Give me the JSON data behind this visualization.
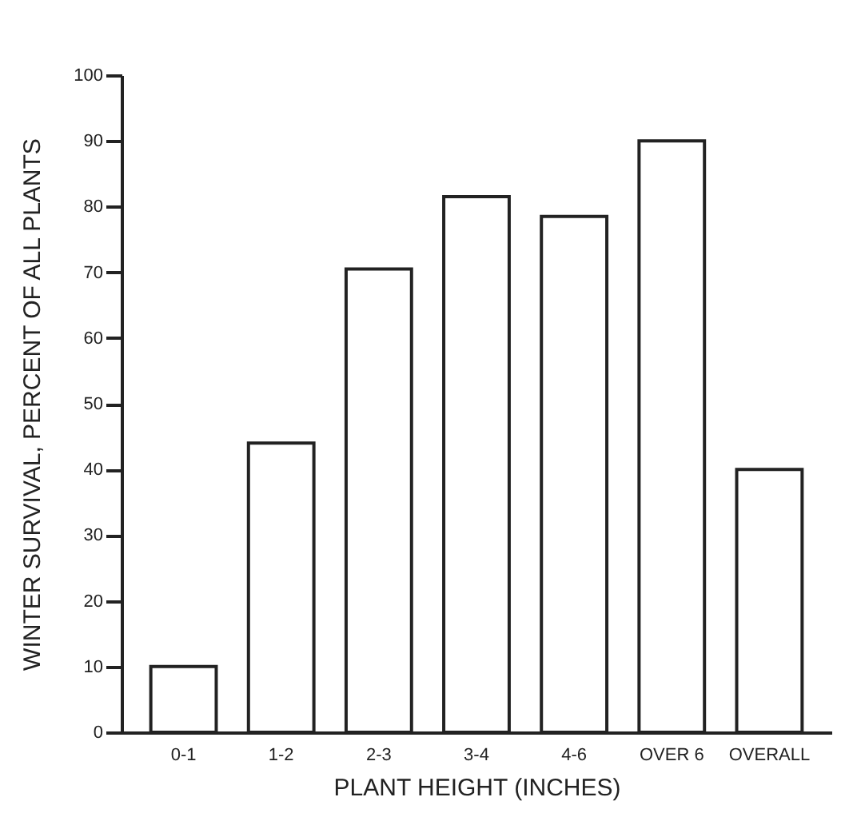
{
  "chart_data": {
    "type": "bar",
    "xlabel": "PLANT  HEIGHT (INCHES)",
    "ylabel": "WINTER  SURVIVAL,  PERCENT  OF  ALL  PLANTS",
    "categories": [
      "0-1",
      "1-2",
      "2-3",
      "3-4",
      "4-6",
      "OVER 6",
      "OVERALL"
    ],
    "values": [
      10,
      44,
      70.5,
      81.5,
      78.5,
      90,
      40
    ],
    "color": "#ffffff",
    "ylim": [
      0,
      100
    ],
    "yticks": [
      0,
      10,
      20,
      30,
      40,
      50,
      60,
      70,
      80,
      90,
      100
    ]
  }
}
